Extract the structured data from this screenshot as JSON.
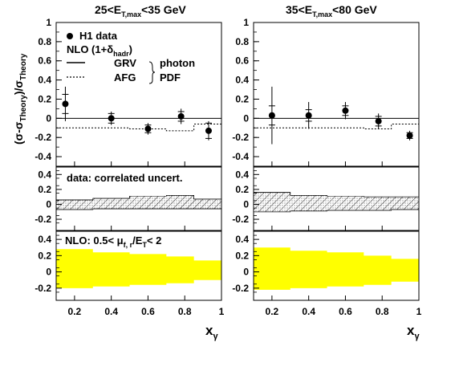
{
  "chart_data": {
    "type": "scatter",
    "xlabel": "x",
    "xlabel_sub": "γ",
    "ylabel": "(σ-σ",
    "ylabel_sub": "Theory",
    "ylabel_mid": ")/σ",
    "ylabel_sub2": "Theory",
    "xlim": [
      0.1,
      1.0
    ],
    "xticks": [
      0.2,
      0.4,
      0.6,
      0.8,
      1
    ],
    "xtick_labels": [
      "0.2",
      "0.4",
      "0.6",
      "0.8",
      "1"
    ],
    "rows": [
      {
        "ylim": [
          -0.5,
          1.0
        ],
        "yticks": [
          -0.4,
          -0.2,
          0,
          0.2,
          0.4,
          0.6,
          0.8,
          1.0
        ],
        "ytick_labels": [
          "-0.4",
          "-0.2",
          "0",
          "0.2",
          "0.4",
          "0.6",
          "0.8",
          "1"
        ]
      },
      {
        "ylim": [
          -0.35,
          0.5
        ],
        "yticks": [
          -0.2,
          0,
          0.2,
          0.4
        ],
        "ytick_labels": [
          "-0.2",
          "0",
          "0.2",
          "0.4"
        ]
      },
      {
        "ylim": [
          -0.35,
          0.5
        ],
        "yticks": [
          -0.2,
          0,
          0.2,
          0.4
        ],
        "ytick_labels": [
          "-0.2",
          "0",
          "0.2",
          "0.4"
        ]
      }
    ],
    "bins": [
      0.1,
      0.3,
      0.5,
      0.7,
      0.85,
      1.0
    ],
    "panels": [
      {
        "title_pre": "25<E",
        "title_sub": "T,max",
        "title_post": "<35 GeV",
        "points": [
          {
            "x": 0.15,
            "y": 0.15,
            "stat": 0.1,
            "tot": 0.18
          },
          {
            "x": 0.4,
            "y": 0.0,
            "stat": 0.05,
            "tot": 0.07
          },
          {
            "x": 0.6,
            "y": -0.11,
            "stat": 0.04,
            "tot": 0.06
          },
          {
            "x": 0.78,
            "y": 0.02,
            "stat": 0.05,
            "tot": 0.08
          },
          {
            "x": 0.93,
            "y": -0.13,
            "stat": 0.08,
            "tot": 0.1
          }
        ],
        "afg": [
          -0.1,
          -0.1,
          -0.11,
          -0.13,
          -0.06,
          0.02
        ],
        "corr_low": [
          -0.07,
          -0.06,
          -0.06,
          -0.06,
          -0.06
        ],
        "corr_high": [
          0.06,
          0.08,
          0.11,
          0.12,
          0.07
        ],
        "scale_low": [
          -0.2,
          -0.18,
          -0.16,
          -0.14,
          -0.1
        ],
        "scale_high": [
          0.28,
          0.24,
          0.22,
          0.19,
          0.14
        ]
      },
      {
        "title_pre": "35<E",
        "title_sub": "T,max",
        "title_post": "<80 GeV",
        "points": [
          {
            "x": 0.2,
            "y": 0.03,
            "stat": 0.1,
            "tot": 0.3
          },
          {
            "x": 0.4,
            "y": 0.03,
            "stat": 0.06,
            "tot": 0.14
          },
          {
            "x": 0.6,
            "y": 0.08,
            "stat": 0.05,
            "tot": 0.09
          },
          {
            "x": 0.78,
            "y": -0.03,
            "stat": 0.05,
            "tot": 0.08
          },
          {
            "x": 0.95,
            "y": -0.18,
            "stat": 0.03,
            "tot": 0.05
          }
        ],
        "afg": [
          -0.1,
          -0.1,
          -0.1,
          -0.11,
          -0.06,
          -0.15
        ],
        "corr_low": [
          -0.1,
          -0.09,
          -0.08,
          -0.08,
          -0.07
        ],
        "corr_high": [
          0.16,
          0.12,
          0.11,
          0.1,
          0.1
        ],
        "scale_low": [
          -0.22,
          -0.2,
          -0.18,
          -0.16,
          -0.12
        ],
        "scale_high": [
          0.3,
          0.26,
          0.24,
          0.2,
          0.16
        ]
      }
    ],
    "legend": {
      "data_label": "H1 data",
      "nlo_pre": "NLO (1+δ",
      "nlo_sub": "hadr",
      "nlo_post": ")",
      "grv": "GRV",
      "afg": "AFG",
      "photon": "photon",
      "pdf": "PDF"
    },
    "annotations": {
      "corr": "data: correlated uncert.",
      "scale_pre": "NLO: 0.5< μ",
      "scale_sub": "f, r",
      "scale_post": "/E",
      "scale_sub2": "T",
      "scale_end": "< 2"
    },
    "colors": {
      "scale_band": "#ffff00",
      "ink": "#000000"
    }
  }
}
